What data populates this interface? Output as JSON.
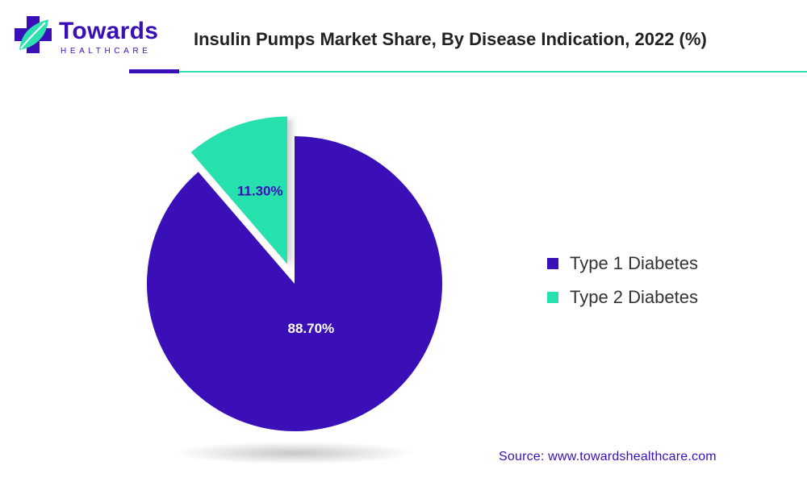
{
  "brand": {
    "name": "Towards",
    "subtitle": "HEALTHCARE",
    "icon": "medical-cross-leaf-icon",
    "colors": {
      "primary": "#3a0fb8",
      "accent": "#2ee0b0"
    }
  },
  "source": "Source: www.towardshealthcare.com",
  "chart_data": {
    "type": "pie",
    "title": "Insulin Pumps Market Share, By Disease Indication, 2022 (%)",
    "categories": [
      "Type 1 Diabetes",
      "Type 2 Diabetes"
    ],
    "values": [
      88.7,
      11.3
    ],
    "labels": [
      "88.70%",
      "11.30%"
    ],
    "colors": [
      "#3a0fb8",
      "#26e0ae"
    ],
    "exploded": [
      "Type 2 Diabetes"
    ],
    "legend": "right"
  }
}
